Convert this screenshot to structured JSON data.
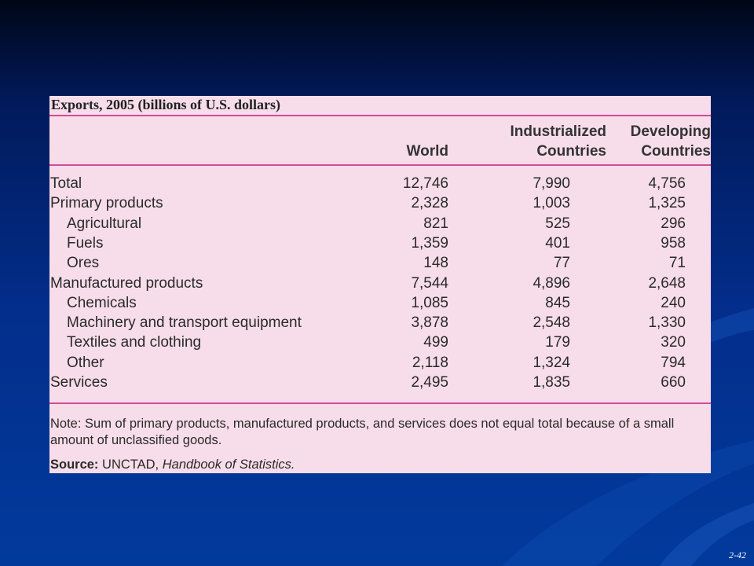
{
  "table": {
    "title": "Exports, 2005 (billions of U.S. dollars)",
    "columns": [
      {
        "line1": "",
        "line2": "World"
      },
      {
        "line1": "Industrialized",
        "line2": "Countries"
      },
      {
        "line1": "Developing",
        "line2": "Countries"
      }
    ],
    "rows": [
      {
        "label": "Total",
        "indent": false,
        "world": "12,746",
        "industrialized": "7,990",
        "developing": "4,756"
      },
      {
        "label": "Primary products",
        "indent": false,
        "world": "2,328",
        "industrialized": "1,003",
        "developing": "1,325"
      },
      {
        "label": "Agricultural",
        "indent": true,
        "world": "821",
        "industrialized": "525",
        "developing": "296"
      },
      {
        "label": "Fuels",
        "indent": true,
        "world": "1,359",
        "industrialized": "401",
        "developing": "958"
      },
      {
        "label": "Ores",
        "indent": true,
        "world": "148",
        "industrialized": "77",
        "developing": "71"
      },
      {
        "label": "Manufactured products",
        "indent": false,
        "world": "7,544",
        "industrialized": "4,896",
        "developing": "2,648"
      },
      {
        "label": "Chemicals",
        "indent": true,
        "world": "1,085",
        "industrialized": "845",
        "developing": "240"
      },
      {
        "label": "Machinery and transport equipment",
        "indent": true,
        "world": "3,878",
        "industrialized": "2,548",
        "developing": "1,330"
      },
      {
        "label": "Textiles and clothing",
        "indent": true,
        "world": "499",
        "industrialized": "179",
        "developing": "320"
      },
      {
        "label": "Other",
        "indent": true,
        "world": "2,118",
        "industrialized": "1,324",
        "developing": "794"
      },
      {
        "label": "Services",
        "indent": false,
        "world": "2,495",
        "industrialized": "1,835",
        "developing": "660"
      }
    ],
    "note": "Note: Sum of primary products, manufactured products, and services does not equal total because of a small amount of unclassified goods.",
    "source_label": "Source:",
    "source_org": "UNCTAD,",
    "source_title": "Handbook of Statistics."
  },
  "slide": {
    "number": "2-42"
  },
  "colors": {
    "panel_background": "#f7dde9",
    "rule": "#d54a9a",
    "slide_background": "#032e8c"
  }
}
